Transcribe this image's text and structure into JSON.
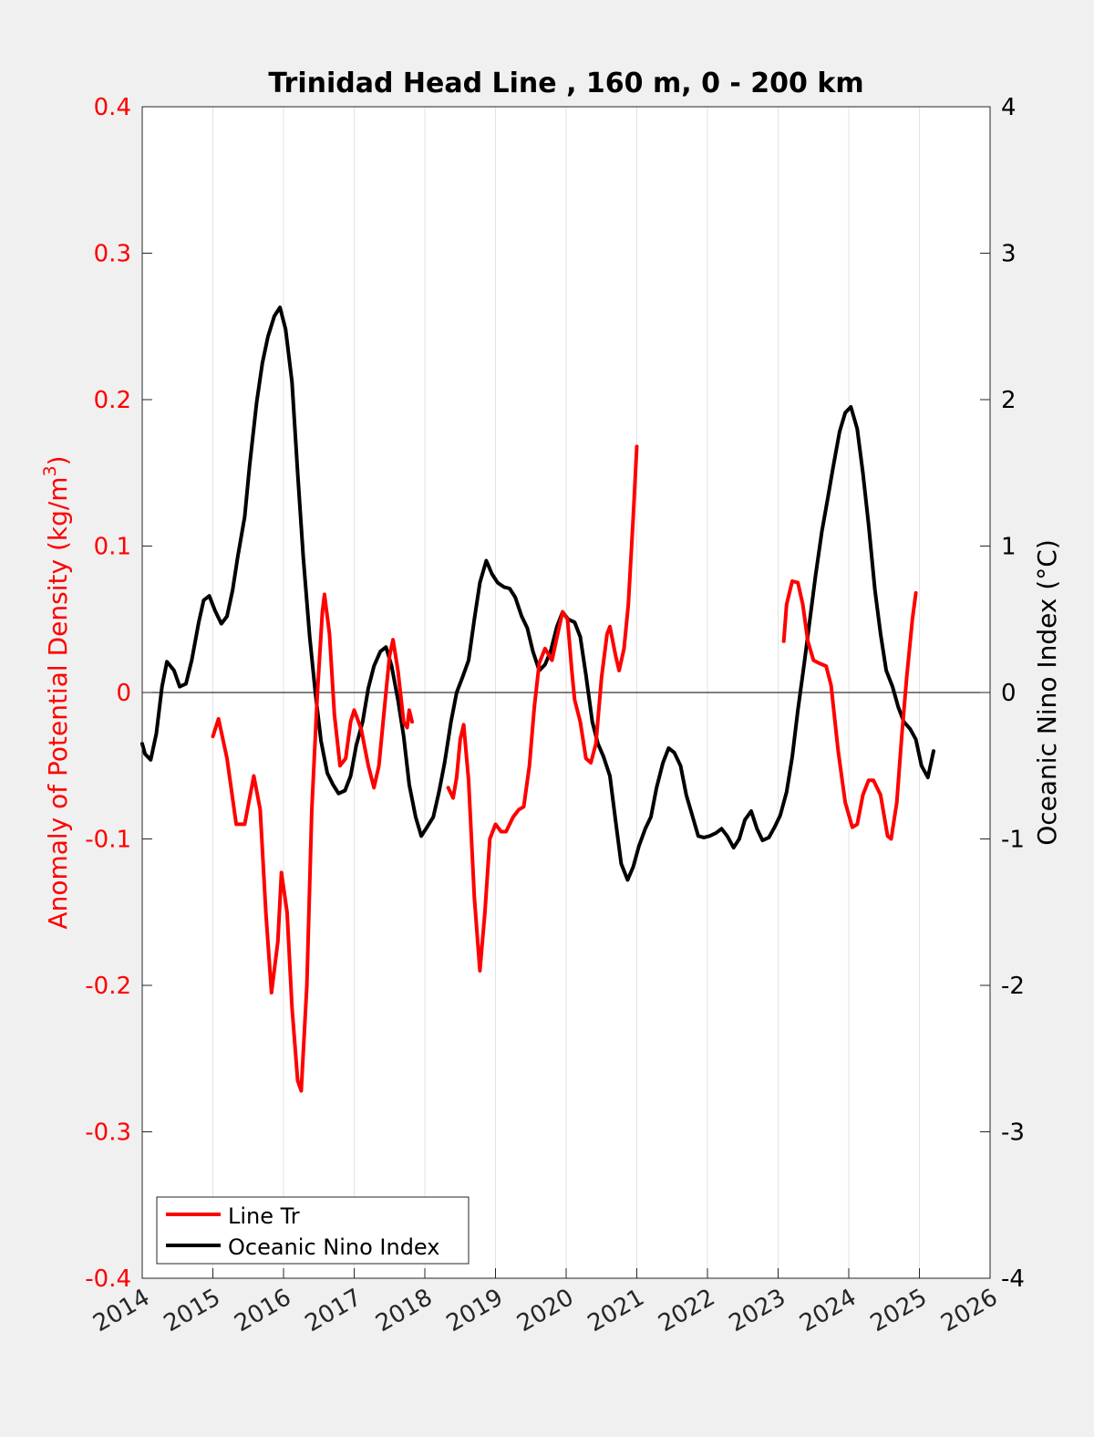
{
  "chart_data": {
    "type": "line",
    "title": "Trinidad Head Line , 160 m, 0 - 200 km",
    "xlabel": "",
    "ylabel_left": "Anomaly of Potential Density (kg/m",
    "ylabel_left_sup": "3",
    "ylabel_left_close": ")",
    "ylabel_right": "Oceanic Nino Index (°C)",
    "xlim": [
      2014,
      2026
    ],
    "ylim_left": [
      -0.4,
      0.4
    ],
    "ylim_right": [
      -4,
      4
    ],
    "x_ticks": [
      2014,
      2015,
      2016,
      2017,
      2018,
      2019,
      2020,
      2021,
      2022,
      2023,
      2024,
      2025,
      2026
    ],
    "x_tick_labels": [
      "2014",
      "2015",
      "2016",
      "2017",
      "2018",
      "2019",
      "2020",
      "2021",
      "2022",
      "2023",
      "2024",
      "2025",
      "2026"
    ],
    "y_left_ticks": [
      -0.4,
      -0.3,
      -0.2,
      -0.1,
      0,
      0.1,
      0.2,
      0.3,
      0.4
    ],
    "y_left_tick_labels": [
      "-0.4",
      "-0.3",
      "-0.2",
      "-0.1",
      "0",
      "0.1",
      "0.2",
      "0.3",
      "0.4"
    ],
    "y_right_ticks": [
      -4,
      -3,
      -2,
      -1,
      0,
      1,
      2,
      3,
      4
    ],
    "y_right_tick_labels": [
      "-4",
      "-3",
      "-2",
      "-1",
      "0",
      "1",
      "2",
      "3",
      "4"
    ],
    "grid": "vertical",
    "legend_position": "bottom-left",
    "colors": {
      "line_tr": "#ff0000",
      "oni": "#000000",
      "left_axis": "#ff0000",
      "right_axis": "#000000",
      "background": "#f0f0f0",
      "plot_area": "#ffffff"
    },
    "series": [
      {
        "name": "Line Tr",
        "axis": "left",
        "segments": [
          [
            [
              2015.0,
              -0.03
            ],
            [
              2015.08,
              -0.018
            ],
            [
              2015.2,
              -0.045
            ],
            [
              2015.33,
              -0.09
            ],
            [
              2015.45,
              -0.09
            ],
            [
              2015.58,
              -0.057
            ],
            [
              2015.67,
              -0.08
            ],
            [
              2015.75,
              -0.15
            ],
            [
              2015.83,
              -0.205
            ],
            [
              2015.92,
              -0.17
            ],
            [
              2015.97,
              -0.123
            ],
            [
              2016.05,
              -0.15
            ],
            [
              2016.12,
              -0.215
            ],
            [
              2016.2,
              -0.265
            ],
            [
              2016.25,
              -0.272
            ],
            [
              2016.33,
              -0.2
            ],
            [
              2016.4,
              -0.08
            ],
            [
              2016.48,
              0.0
            ],
            [
              2016.55,
              0.055
            ],
            [
              2016.58,
              0.067
            ],
            [
              2016.65,
              0.04
            ],
            [
              2016.72,
              -0.015
            ],
            [
              2016.8,
              -0.05
            ],
            [
              2016.88,
              -0.045
            ],
            [
              2016.95,
              -0.02
            ],
            [
              2017.0,
              -0.012
            ],
            [
              2017.1,
              -0.025
            ],
            [
              2017.2,
              -0.05
            ],
            [
              2017.28,
              -0.065
            ],
            [
              2017.35,
              -0.05
            ],
            [
              2017.43,
              -0.01
            ],
            [
              2017.5,
              0.025
            ],
            [
              2017.55,
              0.036
            ],
            [
              2017.62,
              0.015
            ],
            [
              2017.7,
              -0.02
            ],
            [
              2017.75,
              -0.024
            ],
            [
              2017.78,
              -0.012
            ],
            [
              2017.82,
              -0.02
            ]
          ],
          [
            [
              2018.33,
              -0.065
            ],
            [
              2018.4,
              -0.072
            ],
            [
              2018.45,
              -0.058
            ],
            [
              2018.5,
              -0.032
            ],
            [
              2018.55,
              -0.022
            ],
            [
              2018.62,
              -0.06
            ],
            [
              2018.7,
              -0.14
            ],
            [
              2018.78,
              -0.19
            ],
            [
              2018.85,
              -0.15
            ],
            [
              2018.92,
              -0.1
            ],
            [
              2019.0,
              -0.09
            ],
            [
              2019.08,
              -0.095
            ],
            [
              2019.15,
              -0.095
            ],
            [
              2019.25,
              -0.085
            ],
            [
              2019.33,
              -0.08
            ],
            [
              2019.4,
              -0.078
            ],
            [
              2019.48,
              -0.05
            ],
            [
              2019.55,
              -0.01
            ],
            [
              2019.62,
              0.02
            ],
            [
              2019.7,
              0.03
            ],
            [
              2019.8,
              0.022
            ],
            [
              2019.88,
              0.04
            ],
            [
              2019.95,
              0.055
            ],
            [
              2020.02,
              0.05
            ],
            [
              2020.08,
              0.015
            ],
            [
              2020.12,
              -0.005
            ],
            [
              2020.2,
              -0.02
            ],
            [
              2020.28,
              -0.045
            ],
            [
              2020.35,
              -0.048
            ],
            [
              2020.42,
              -0.035
            ],
            [
              2020.5,
              0.01
            ],
            [
              2020.58,
              0.04
            ],
            [
              2020.62,
              0.045
            ],
            [
              2020.7,
              0.025
            ],
            [
              2020.75,
              0.015
            ],
            [
              2020.82,
              0.03
            ],
            [
              2020.88,
              0.06
            ],
            [
              2020.95,
              0.12
            ],
            [
              2021.0,
              0.168
            ]
          ],
          [
            [
              2023.08,
              0.035
            ],
            [
              2023.12,
              0.06
            ],
            [
              2023.2,
              0.076
            ],
            [
              2023.28,
              0.075
            ],
            [
              2023.35,
              0.06
            ],
            [
              2023.42,
              0.035
            ],
            [
              2023.5,
              0.022
            ],
            [
              2023.58,
              0.02
            ],
            [
              2023.68,
              0.018
            ],
            [
              2023.75,
              0.005
            ],
            [
              2023.85,
              -0.04
            ],
            [
              2023.95,
              -0.075
            ],
            [
              2024.05,
              -0.092
            ],
            [
              2024.12,
              -0.09
            ],
            [
              2024.2,
              -0.07
            ],
            [
              2024.28,
              -0.06
            ],
            [
              2024.35,
              -0.06
            ],
            [
              2024.45,
              -0.07
            ],
            [
              2024.55,
              -0.098
            ],
            [
              2024.6,
              -0.1
            ],
            [
              2024.68,
              -0.075
            ],
            [
              2024.75,
              -0.03
            ],
            [
              2024.82,
              0.01
            ],
            [
              2024.9,
              0.05
            ],
            [
              2024.95,
              0.068
            ]
          ]
        ]
      },
      {
        "name": "Oceanic Nino Index",
        "axis": "right",
        "segments": [
          [
            [
              2014.0,
              -0.35
            ],
            [
              2014.04,
              -0.42
            ],
            [
              2014.12,
              -0.46
            ],
            [
              2014.2,
              -0.28
            ],
            [
              2014.28,
              0.04
            ],
            [
              2014.35,
              0.21
            ],
            [
              2014.45,
              0.15
            ],
            [
              2014.53,
              0.04
            ],
            [
              2014.62,
              0.06
            ],
            [
              2014.7,
              0.22
            ],
            [
              2014.8,
              0.48
            ],
            [
              2014.87,
              0.63
            ],
            [
              2014.95,
              0.66
            ],
            [
              2015.03,
              0.56
            ],
            [
              2015.12,
              0.47
            ],
            [
              2015.2,
              0.52
            ],
            [
              2015.28,
              0.7
            ],
            [
              2015.35,
              0.92
            ],
            [
              2015.45,
              1.2
            ],
            [
              2015.52,
              1.55
            ],
            [
              2015.62,
              1.98
            ],
            [
              2015.7,
              2.25
            ],
            [
              2015.78,
              2.43
            ],
            [
              2015.87,
              2.57
            ],
            [
              2015.95,
              2.63
            ],
            [
              2016.03,
              2.48
            ],
            [
              2016.12,
              2.12
            ],
            [
              2016.2,
              1.5
            ],
            [
              2016.28,
              0.92
            ],
            [
              2016.37,
              0.38
            ],
            [
              2016.45,
              0.0
            ],
            [
              2016.53,
              -0.33
            ],
            [
              2016.62,
              -0.55
            ],
            [
              2016.7,
              -0.63
            ],
            [
              2016.78,
              -0.69
            ],
            [
              2016.87,
              -0.67
            ],
            [
              2016.95,
              -0.57
            ],
            [
              2017.03,
              -0.36
            ],
            [
              2017.12,
              -0.2
            ],
            [
              2017.2,
              0.03
            ],
            [
              2017.28,
              0.18
            ],
            [
              2017.37,
              0.28
            ],
            [
              2017.45,
              0.31
            ],
            [
              2017.53,
              0.18
            ],
            [
              2017.62,
              -0.05
            ],
            [
              2017.7,
              -0.3
            ],
            [
              2017.78,
              -0.63
            ],
            [
              2017.87,
              -0.85
            ],
            [
              2017.95,
              -0.98
            ],
            [
              2018.03,
              -0.92
            ],
            [
              2018.12,
              -0.85
            ],
            [
              2018.2,
              -0.68
            ],
            [
              2018.28,
              -0.48
            ],
            [
              2018.37,
              -0.2
            ],
            [
              2018.45,
              0.0
            ],
            [
              2018.53,
              0.1
            ],
            [
              2018.62,
              0.22
            ],
            [
              2018.7,
              0.5
            ],
            [
              2018.78,
              0.75
            ],
            [
              2018.87,
              0.9
            ],
            [
              2018.95,
              0.81
            ],
            [
              2019.03,
              0.75
            ],
            [
              2019.12,
              0.72
            ],
            [
              2019.2,
              0.71
            ],
            [
              2019.28,
              0.65
            ],
            [
              2019.37,
              0.52
            ],
            [
              2019.45,
              0.44
            ],
            [
              2019.53,
              0.28
            ],
            [
              2019.62,
              0.15
            ],
            [
              2019.7,
              0.19
            ],
            [
              2019.78,
              0.28
            ],
            [
              2019.87,
              0.45
            ],
            [
              2019.95,
              0.55
            ],
            [
              2020.03,
              0.5
            ],
            [
              2020.12,
              0.48
            ],
            [
              2020.2,
              0.38
            ],
            [
              2020.28,
              0.12
            ],
            [
              2020.37,
              -0.2
            ],
            [
              2020.45,
              -0.35
            ],
            [
              2020.53,
              -0.44
            ],
            [
              2020.62,
              -0.57
            ],
            [
              2020.7,
              -0.88
            ],
            [
              2020.78,
              -1.17
            ],
            [
              2020.87,
              -1.28
            ],
            [
              2020.95,
              -1.19
            ],
            [
              2021.03,
              -1.05
            ],
            [
              2021.12,
              -0.93
            ],
            [
              2021.2,
              -0.85
            ],
            [
              2021.28,
              -0.65
            ],
            [
              2021.37,
              -0.48
            ],
            [
              2021.45,
              -0.38
            ],
            [
              2021.53,
              -0.41
            ],
            [
              2021.62,
              -0.5
            ],
            [
              2021.7,
              -0.7
            ],
            [
              2021.78,
              -0.83
            ],
            [
              2021.87,
              -0.98
            ],
            [
              2021.95,
              -0.99
            ],
            [
              2022.03,
              -0.98
            ],
            [
              2022.12,
              -0.96
            ],
            [
              2022.2,
              -0.93
            ],
            [
              2022.28,
              -0.98
            ],
            [
              2022.37,
              -1.06
            ],
            [
              2022.45,
              -1.0
            ],
            [
              2022.53,
              -0.87
            ],
            [
              2022.62,
              -0.81
            ],
            [
              2022.7,
              -0.93
            ],
            [
              2022.78,
              -1.01
            ],
            [
              2022.87,
              -0.99
            ],
            [
              2022.95,
              -0.92
            ],
            [
              2023.03,
              -0.84
            ],
            [
              2023.12,
              -0.68
            ],
            [
              2023.2,
              -0.44
            ],
            [
              2023.28,
              -0.12
            ],
            [
              2023.37,
              0.2
            ],
            [
              2023.45,
              0.5
            ],
            [
              2023.53,
              0.8
            ],
            [
              2023.62,
              1.1
            ],
            [
              2023.7,
              1.32
            ],
            [
              2023.78,
              1.54
            ],
            [
              2023.87,
              1.78
            ],
            [
              2023.95,
              1.91
            ],
            [
              2024.03,
              1.95
            ],
            [
              2024.12,
              1.8
            ],
            [
              2024.2,
              1.5
            ],
            [
              2024.28,
              1.15
            ],
            [
              2024.37,
              0.7
            ],
            [
              2024.45,
              0.4
            ],
            [
              2024.53,
              0.15
            ],
            [
              2024.62,
              0.04
            ],
            [
              2024.7,
              -0.1
            ],
            [
              2024.78,
              -0.2
            ],
            [
              2024.87,
              -0.25
            ],
            [
              2024.95,
              -0.32
            ],
            [
              2025.03,
              -0.5
            ],
            [
              2025.12,
              -0.58
            ],
            [
              2025.2,
              -0.4
            ]
          ]
        ]
      }
    ]
  }
}
